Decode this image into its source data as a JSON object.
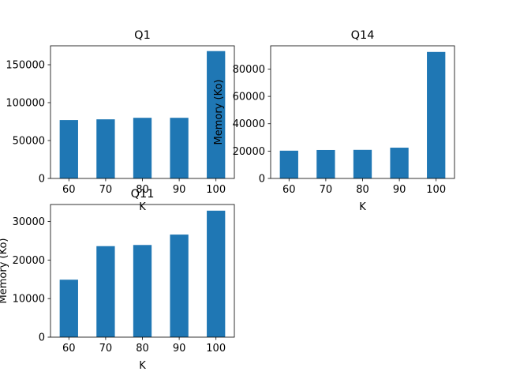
{
  "figure": {
    "background": "#ffffff",
    "bar_color": "#1f77b4"
  },
  "chart_data": [
    {
      "type": "bar",
      "title": "Q1",
      "categories": [
        "60",
        "70",
        "80",
        "90",
        "100"
      ],
      "values": [
        77000,
        78000,
        80000,
        80000,
        168000
      ],
      "xlabel": "K",
      "ylabel": "",
      "ylim": [
        0,
        175000
      ],
      "yticks": [
        0,
        50000,
        100000,
        150000
      ],
      "ytick_labels": [
        "0",
        "50000",
        "100000",
        "150000"
      ],
      "grid": false
    },
    {
      "type": "bar",
      "title": "Q14",
      "categories": [
        "60",
        "70",
        "80",
        "90",
        "100"
      ],
      "values": [
        20300,
        20800,
        20900,
        22500,
        92500
      ],
      "xlabel": "K",
      "ylabel": "Memory (Ko)",
      "ylim": [
        0,
        97000
      ],
      "yticks": [
        0,
        20000,
        40000,
        60000,
        80000
      ],
      "ytick_labels": [
        "0",
        "20000",
        "40000",
        "60000",
        "80000"
      ],
      "grid": false
    },
    {
      "type": "bar",
      "title": "Q11",
      "categories": [
        "60",
        "70",
        "80",
        "90",
        "100"
      ],
      "values": [
        14900,
        23600,
        23900,
        26600,
        32800
      ],
      "xlabel": "K",
      "ylabel": "Memory (Ko)",
      "ylim": [
        0,
        34400
      ],
      "yticks": [
        0,
        10000,
        20000,
        30000
      ],
      "ytick_labels": [
        "0",
        "10000",
        "20000",
        "30000"
      ],
      "grid": false
    }
  ]
}
